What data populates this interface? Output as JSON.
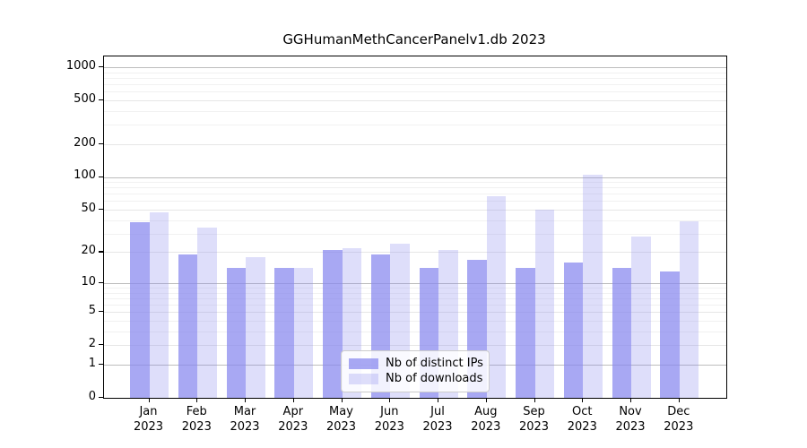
{
  "title": "GGHumanMethCancerPanelv1.db 2023",
  "chart_data": {
    "type": "bar",
    "categories": [
      "Jan",
      "Feb",
      "Mar",
      "Apr",
      "May",
      "Jun",
      "Jul",
      "Aug",
      "Sep",
      "Oct",
      "Nov",
      "Dec"
    ],
    "year_label": "2023",
    "series": [
      {
        "name": "Nb of distinct IPs",
        "color": "rgba(136,136,238,0.73)",
        "values": [
          38,
          19,
          14,
          14,
          21,
          19,
          14,
          17,
          14,
          16,
          14,
          13
        ]
      },
      {
        "name": "Nb of downloads",
        "color": "rgba(136,136,238,0.28)",
        "values": [
          47,
          34,
          18,
          14,
          22,
          24,
          21,
          67,
          50,
          105,
          28,
          39
        ]
      }
    ],
    "y_ticks": [
      1000,
      500,
      200,
      100,
      50,
      20,
      10,
      5,
      2,
      1,
      0
    ],
    "y_scale": "log(v+1)",
    "ylim": [
      0,
      1230
    ],
    "xlabel": "",
    "ylabel": "",
    "grid": "major+minor horizontal",
    "legend_position": "lower center",
    "colors": {
      "grid_decade": "#bdbdbd",
      "grid_major": "#e6e6e6",
      "grid_minor": "#f1f1f1",
      "axis": "#000000"
    }
  }
}
